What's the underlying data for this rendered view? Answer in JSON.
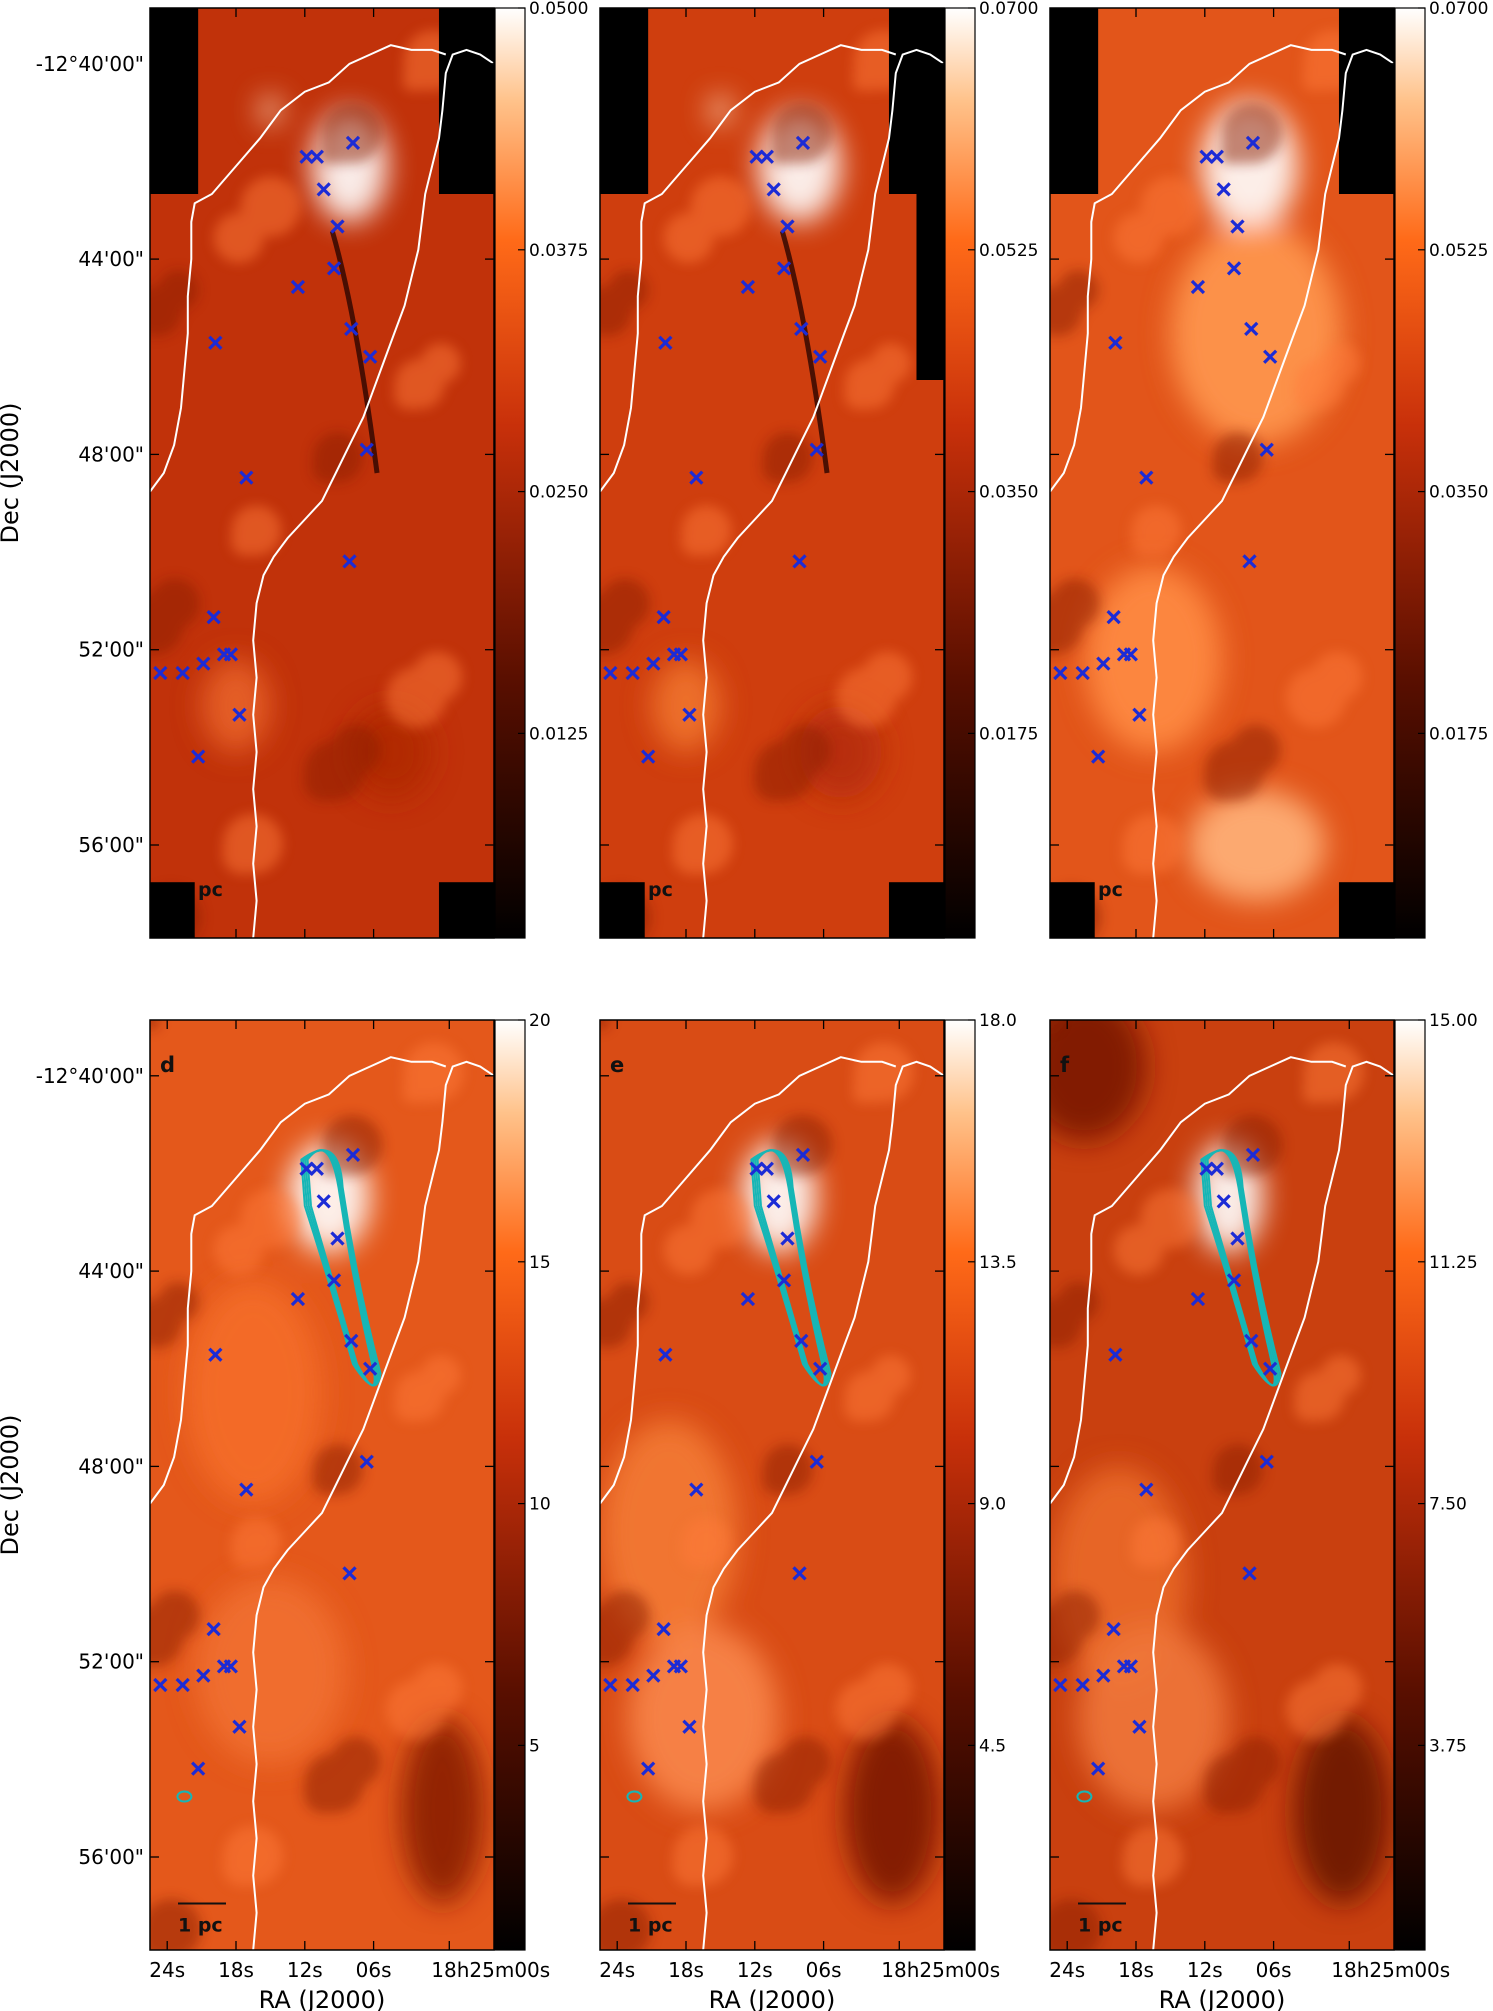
{
  "axes": {
    "y_title": "Dec (J2000)",
    "x_title": "RA (J2000)",
    "dec_ticks": [
      "-12°40'00\"",
      "44'00\"",
      "48'00\"",
      "52'00\"",
      "56'00\""
    ],
    "ra_ticks": [
      "24s",
      "18s",
      "12s",
      "06s",
      "18h25m00s"
    ]
  },
  "panels": [
    {
      "id": "a",
      "letter": "",
      "scale_label": "pc",
      "colorbar": [
        "0.0500",
        "0.0375",
        "0.0250",
        "0.0125"
      ]
    },
    {
      "id": "b",
      "letter": "",
      "scale_label": "pc",
      "colorbar": [
        "0.0700",
        "0.0525",
        "0.0350",
        "0.0175"
      ]
    },
    {
      "id": "c",
      "letter": "",
      "scale_label": "pc",
      "colorbar": [
        "0.0700",
        "0.0525",
        "0.0350",
        "0.0175"
      ]
    },
    {
      "id": "d",
      "letter": "d",
      "scale_label": "1 pc",
      "colorbar": [
        "20",
        "15",
        "10",
        "5"
      ]
    },
    {
      "id": "e",
      "letter": "e",
      "scale_label": "1 pc",
      "colorbar": [
        "18.0",
        "13.5",
        "9.0",
        "4.5"
      ]
    },
    {
      "id": "f",
      "letter": "f",
      "scale_label": "1 pc",
      "colorbar": [
        "15.00",
        "11.25",
        "7.50",
        "3.75"
      ]
    }
  ],
  "colors": {
    "map_low": "#1a0400",
    "map_mid": "#d4360a",
    "map_high": "#ffffff",
    "markers": "#1c2bd6",
    "contours": "#16b6b6",
    "boundary": "#ffffff"
  }
}
